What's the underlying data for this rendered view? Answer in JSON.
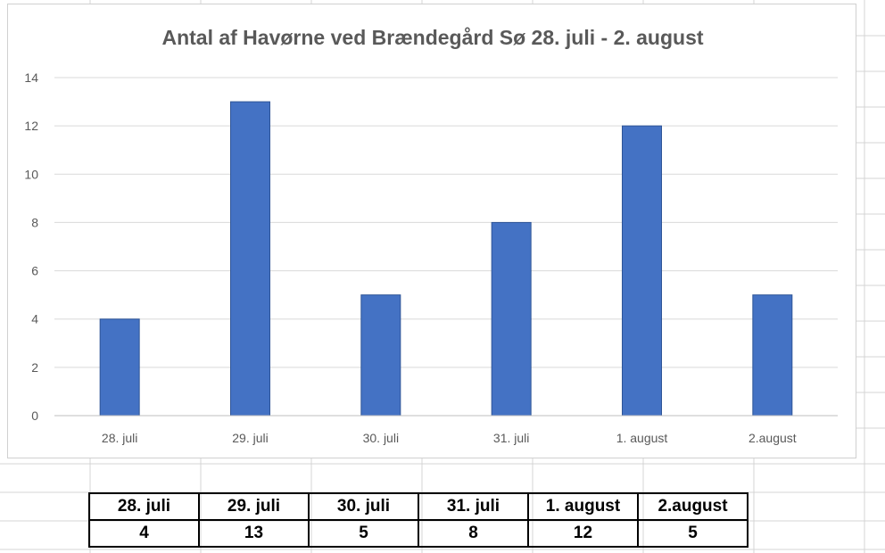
{
  "chart_data": {
    "type": "bar",
    "title": "Antal af Havørne ved Brændegård Sø 28. juli - 2. august",
    "categories": [
      "28. juli",
      "29. juli",
      "30. juli",
      "31. juli",
      "1. august",
      "2.august"
    ],
    "values": [
      4,
      13,
      5,
      8,
      12,
      5
    ],
    "yticks": [
      "0",
      "2",
      "4",
      "6",
      "8",
      "10",
      "12",
      "14"
    ],
    "ylim": [
      0,
      14
    ],
    "grid": true,
    "legend": "none",
    "bar_color": "#4472C4"
  },
  "table": {
    "headers": [
      "28. juli",
      "29. juli",
      "30. juli",
      "31. juli",
      "1. august",
      "2.august"
    ],
    "values": [
      "4",
      "13",
      "5",
      "8",
      "12",
      "5"
    ]
  }
}
